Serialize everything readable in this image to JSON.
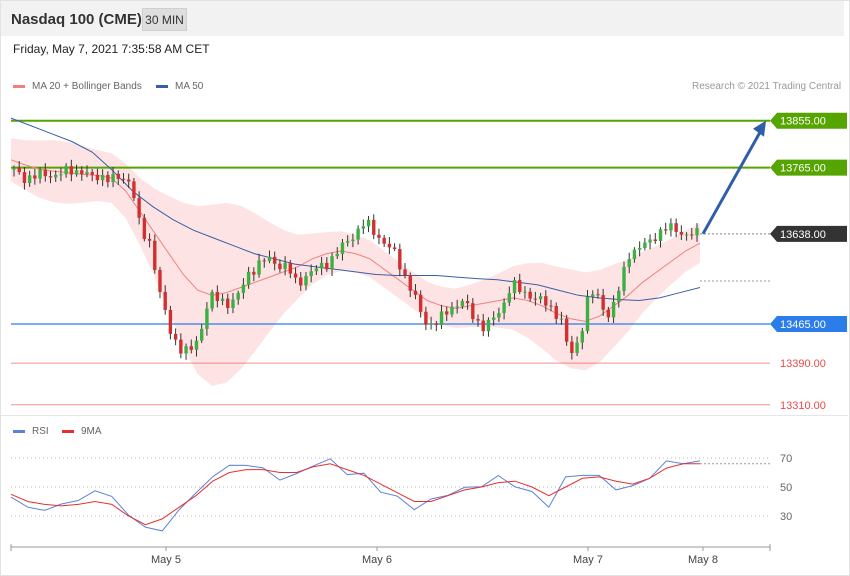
{
  "header": {
    "title": "Nasdaq 100 (CME)",
    "timeframe": "30 MIN",
    "datetime": "Friday, May 7, 2021 7:35:58 AM CET"
  },
  "legend": {
    "ma20_label": "MA 20 + Bollinger Bands",
    "ma50_label": "MA 50",
    "credit": "Research © 2021 Trading Central"
  },
  "rsi_legend": {
    "rsi_label": "RSI",
    "ma9_label": "9MA"
  },
  "colors": {
    "resistance": "#55a400",
    "support": "#2b7de9",
    "red_level": "#e84a4a",
    "current": "#333333",
    "candle_up": "#3cb043",
    "candle_down": "#d32f2f",
    "ma20": "#f08080",
    "ma50": "#3a5fa8",
    "bb_fill": "#fde0e0",
    "arrow": "#2e5ea8",
    "rsi": "#5b82d8",
    "rsi_ma": "#e53030"
  },
  "chart_data": [
    {
      "type": "candlestick",
      "title": "Nasdaq 100 (CME)",
      "interval": "30 MIN",
      "x_labels": [
        "May 5",
        "May 6",
        "May 7",
        "May 8"
      ],
      "ylim": [
        13300,
        13870
      ],
      "levels": [
        {
          "value": 13855.0,
          "label": "13855.00",
          "kind": "resistance"
        },
        {
          "value": 13765.0,
          "label": "13765.00",
          "kind": "resistance"
        },
        {
          "value": 13638.0,
          "label": "13638.00",
          "kind": "current"
        },
        {
          "value": 13465.0,
          "label": "13465.00",
          "kind": "support"
        },
        {
          "value": 13390.0,
          "label": "13390.00",
          "kind": "support-minor"
        },
        {
          "value": 13310.0,
          "label": "13310.00",
          "kind": "support-minor"
        }
      ],
      "close_path": [
        13760,
        13745,
        13748,
        13752,
        13750,
        13755,
        13760,
        13758,
        13745,
        13750,
        13742,
        13745,
        13740,
        13640,
        13620,
        13520,
        13450,
        13420,
        13410,
        13440,
        13520,
        13510,
        13505,
        13520,
        13560,
        13580,
        13590,
        13580,
        13575,
        13540,
        13560,
        13570,
        13580,
        13600,
        13620,
        13640,
        13660,
        13640,
        13620,
        13600,
        13560,
        13520,
        13470,
        13465,
        13480,
        13500,
        13510,
        13480,
        13460,
        13470,
        13495,
        13545,
        13525,
        13520,
        13510,
        13495,
        13480,
        13400,
        13440,
        13530,
        13510,
        13480,
        13530,
        13600,
        13610,
        13620,
        13640,
        13650,
        13645,
        13635,
        13638
      ],
      "ma20_path": [
        13780,
        13770,
        13762,
        13758,
        13755,
        13752,
        13750,
        13745,
        13720,
        13680,
        13640,
        13600,
        13560,
        13530,
        13520,
        13525,
        13535,
        13545,
        13555,
        13565,
        13575,
        13590,
        13600,
        13605,
        13600,
        13590,
        13570,
        13550,
        13530,
        13510,
        13500,
        13495,
        13500,
        13505,
        13510,
        13515,
        13510,
        13500,
        13485,
        13475,
        13470,
        13480,
        13500,
        13520,
        13545,
        13565,
        13585,
        13605,
        13620
      ],
      "ma50_path": [
        13860,
        13845,
        13830,
        13815,
        13795,
        13760,
        13720,
        13690,
        13665,
        13645,
        13630,
        13615,
        13600,
        13590,
        13580,
        13575,
        13570,
        13565,
        13560,
        13558,
        13558,
        13558,
        13555,
        13552,
        13550,
        13545,
        13540,
        13530,
        13520,
        13515,
        13512,
        13510,
        13515,
        13525,
        13535
      ],
      "target": 13855.0
    },
    {
      "type": "line",
      "title": "RSI",
      "y_ticks": [
        70,
        50,
        30
      ],
      "series": [
        {
          "name": "RSI",
          "values": [
            43,
            36,
            34,
            38,
            41,
            47,
            44,
            30,
            23,
            19,
            35,
            45,
            58,
            64,
            66,
            62,
            56,
            58,
            66,
            68,
            60,
            58,
            48,
            42,
            36,
            40,
            46,
            48,
            52,
            56,
            52,
            45,
            38,
            55,
            60,
            56,
            50,
            49,
            58,
            66,
            68,
            66
          ]
        },
        {
          "name": "9MA",
          "values": [
            45,
            40,
            38,
            37,
            38,
            40,
            38,
            30,
            24,
            28,
            36,
            44,
            54,
            60,
            62,
            62,
            60,
            60,
            64,
            66,
            62,
            58,
            52,
            46,
            40,
            40,
            44,
            48,
            50,
            53,
            54,
            50,
            44,
            50,
            56,
            57,
            54,
            52,
            56,
            63,
            66,
            66
          ]
        }
      ]
    }
  ]
}
